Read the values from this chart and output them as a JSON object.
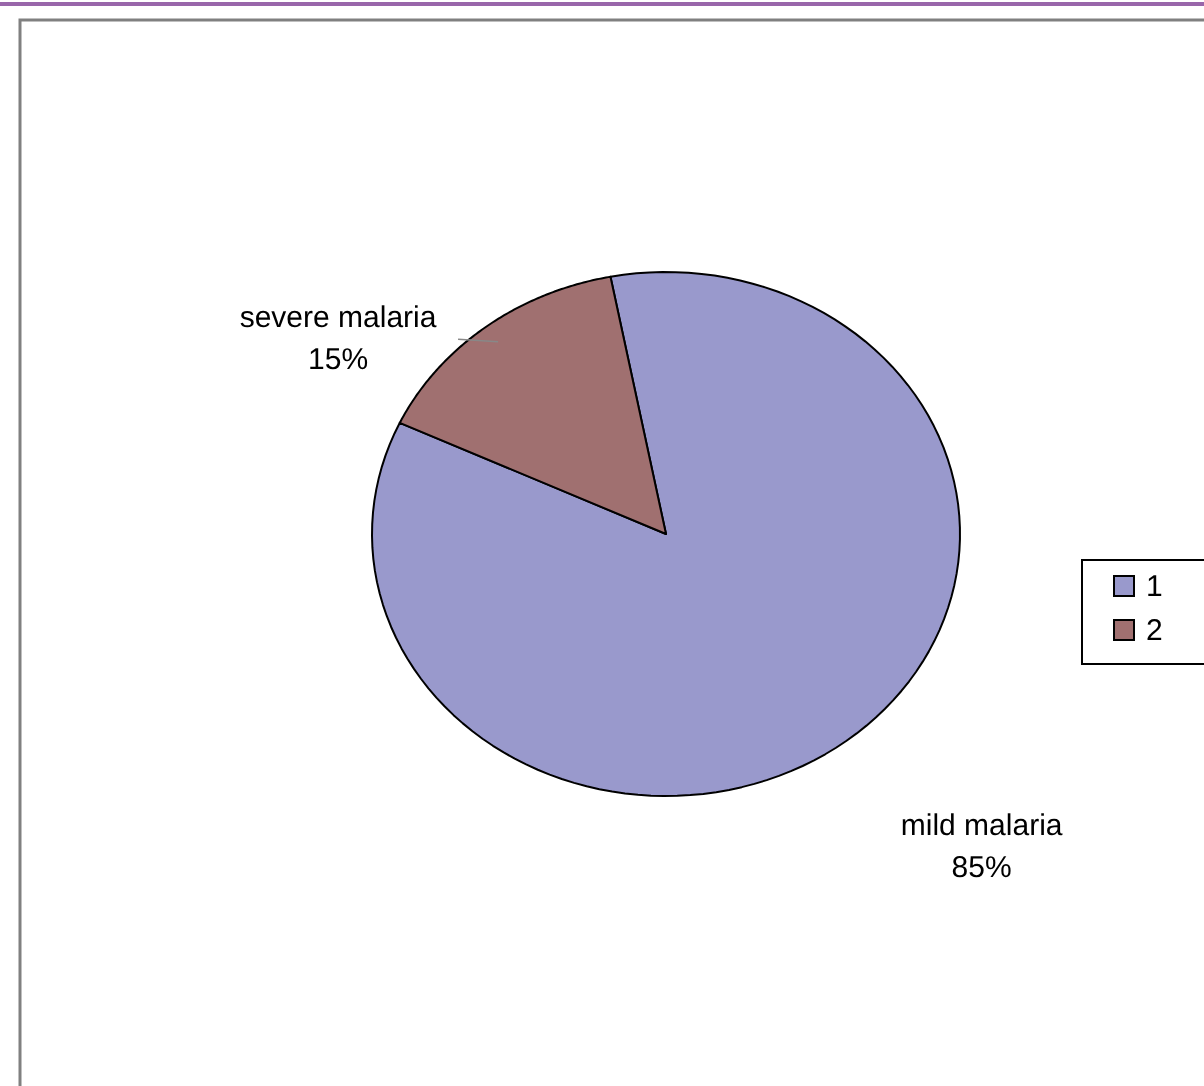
{
  "chart_data": {
    "type": "pie",
    "categories": [
      "1",
      "2"
    ],
    "values": [
      85,
      15
    ],
    "colors": [
      "#9999cc",
      "#a07070"
    ],
    "value_labels": [
      "85%",
      "15%"
    ],
    "annotations": [
      "mild malaria",
      "severe malaria"
    ],
    "legend": "right"
  }
}
